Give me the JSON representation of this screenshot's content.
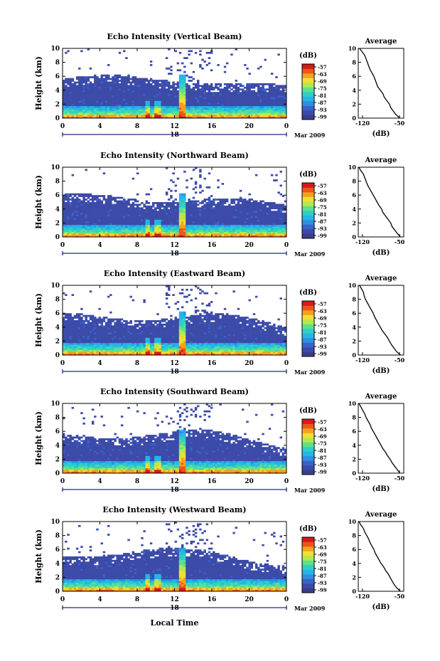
{
  "figure": {
    "x_axis_label": "Local Time",
    "date_label": "Mar 2009",
    "avg_title": "Average",
    "avg_xlabel": "(dB)",
    "colorbar_title": "(dB)",
    "colorbar_ticks": [
      "-57",
      "-63",
      "-69",
      "-75",
      "-81",
      "-87",
      "-93",
      "-99"
    ],
    "colormap": [
      "#3b3d8c",
      "#3c4aa8",
      "#3a62c8",
      "#2f8fe0",
      "#23b6e6",
      "#2ed0c6",
      "#5ee08e",
      "#b4e84c",
      "#f0e030",
      "#f7a020",
      "#ee5518",
      "#d8181a"
    ]
  },
  "chart_data": [
    {
      "type": "heatmap",
      "title": "Echo Intensity (Vertical Beam)",
      "ylabel": "Height (km)",
      "xlim": [
        0,
        24
      ],
      "ylim": [
        0,
        10
      ],
      "x_ticks": [
        "0",
        "4",
        "8",
        "12",
        "16",
        "20",
        "0"
      ],
      "y_ticks": [
        "0",
        "2",
        "4",
        "6",
        "8",
        "10"
      ],
      "day_marker": "18",
      "colorbar_range_db": [
        -99,
        -57
      ],
      "average_profile": {
        "xlim": [
          -120,
          -50
        ],
        "x_ticks": [
          "-120",
          "-50"
        ],
        "y_ticks": [
          "0",
          "2",
          "4",
          "6",
          "8",
          "10"
        ],
        "db": [
          -56,
          -62,
          -66,
          -70,
          -72,
          -76,
          -80,
          -82,
          -86,
          -90,
          -92,
          -94,
          -96,
          -99,
          -102,
          -104,
          -106,
          -108,
          -110,
          -114,
          -118
        ],
        "height_km": [
          0.0,
          0.5,
          1.0,
          1.5,
          2.0,
          2.5,
          3.0,
          3.5,
          4.0,
          4.5,
          5.0,
          5.5,
          6.0,
          6.5,
          7.0,
          7.5,
          8.0,
          8.5,
          9.0,
          9.5,
          10.0
        ]
      }
    },
    {
      "type": "heatmap",
      "title": "Echo Intensity (Northward Beam)",
      "ylabel": "Height (km)",
      "xlim": [
        0,
        24
      ],
      "ylim": [
        0,
        10
      ],
      "x_ticks": [
        "0",
        "4",
        "8",
        "12",
        "16",
        "20",
        "0"
      ],
      "y_ticks": [
        "0",
        "2",
        "4",
        "6",
        "8",
        "10"
      ],
      "day_marker": "18",
      "colorbar_range_db": [
        -99,
        -57
      ],
      "average_profile": {
        "xlim": [
          -120,
          -50
        ],
        "x_ticks": [
          "-120",
          "-50"
        ],
        "y_ticks": [
          "0",
          "2",
          "4",
          "6",
          "8",
          "10"
        ],
        "db": [
          -55,
          -60,
          -64,
          -68,
          -70,
          -74,
          -78,
          -82,
          -84,
          -88,
          -91,
          -94,
          -97,
          -100,
          -103,
          -106,
          -108,
          -110,
          -112,
          -116,
          -119
        ],
        "height_km": [
          0.0,
          0.5,
          1.0,
          1.5,
          2.0,
          2.5,
          3.0,
          3.5,
          4.0,
          4.5,
          5.0,
          5.5,
          6.0,
          6.5,
          7.0,
          7.5,
          8.0,
          8.5,
          9.0,
          9.5,
          10.0
        ]
      }
    },
    {
      "type": "heatmap",
      "title": "Echo Intensity (Eastward Beam)",
      "ylabel": "Height (km)",
      "xlim": [
        0,
        24
      ],
      "ylim": [
        0,
        10
      ],
      "x_ticks": [
        "0",
        "4",
        "8",
        "12",
        "16",
        "20",
        "0"
      ],
      "y_ticks": [
        "0",
        "2",
        "4",
        "6",
        "8",
        "10"
      ],
      "day_marker": "18",
      "colorbar_range_db": [
        -99,
        -57
      ],
      "average_profile": {
        "xlim": [
          -120,
          -50
        ],
        "x_ticks": [
          "-120",
          "-50"
        ],
        "y_ticks": [
          "0",
          "2",
          "4",
          "6",
          "8",
          "10"
        ],
        "db": [
          -55,
          -61,
          -65,
          -69,
          -72,
          -75,
          -79,
          -83,
          -86,
          -89,
          -92,
          -95,
          -97,
          -100,
          -103,
          -106,
          -109,
          -111,
          -112,
          -115,
          -118
        ],
        "height_km": [
          0.0,
          0.5,
          1.0,
          1.5,
          2.0,
          2.5,
          3.0,
          3.5,
          4.0,
          4.5,
          5.0,
          5.5,
          6.0,
          6.5,
          7.0,
          7.5,
          8.0,
          8.5,
          9.0,
          9.5,
          10.0
        ]
      }
    },
    {
      "type": "heatmap",
      "title": "Echo Intensity (Southward Beam)",
      "ylabel": "Height (km)",
      "xlim": [
        0,
        24
      ],
      "ylim": [
        0,
        10
      ],
      "x_ticks": [
        "0",
        "4",
        "8",
        "12",
        "16",
        "20",
        "0"
      ],
      "y_ticks": [
        "0",
        "2",
        "4",
        "6",
        "8",
        "10"
      ],
      "day_marker": "18",
      "colorbar_range_db": [
        -99,
        -57
      ],
      "average_profile": {
        "xlim": [
          -120,
          -50
        ],
        "x_ticks": [
          "-120",
          "-50"
        ],
        "y_ticks": [
          "0",
          "2",
          "4",
          "6",
          "8",
          "10"
        ],
        "db": [
          -56,
          -60,
          -64,
          -68,
          -71,
          -75,
          -78,
          -82,
          -85,
          -88,
          -91,
          -94,
          -97,
          -100,
          -102,
          -105,
          -108,
          -110,
          -113,
          -116,
          -119
        ],
        "height_km": [
          0.0,
          0.5,
          1.0,
          1.5,
          2.0,
          2.5,
          3.0,
          3.5,
          4.0,
          4.5,
          5.0,
          5.5,
          6.0,
          6.5,
          7.0,
          7.5,
          8.0,
          8.5,
          9.0,
          9.5,
          10.0
        ]
      }
    },
    {
      "type": "heatmap",
      "title": "Echo Intensity (Westward Beam)",
      "ylabel": "Height (km)",
      "xlim": [
        0,
        24
      ],
      "ylim": [
        0,
        10
      ],
      "x_ticks": [
        "0",
        "4",
        "8",
        "12",
        "16",
        "20",
        "0"
      ],
      "y_ticks": [
        "0",
        "2",
        "4",
        "6",
        "8",
        "10"
      ],
      "day_marker": "18",
      "colorbar_range_db": [
        -99,
        -57
      ],
      "average_profile": {
        "xlim": [
          -120,
          -50
        ],
        "x_ticks": [
          "-120",
          "-50"
        ],
        "y_ticks": [
          "0",
          "2",
          "4",
          "6",
          "8",
          "10"
        ],
        "db": [
          -55,
          -61,
          -65,
          -68,
          -71,
          -74,
          -78,
          -81,
          -85,
          -88,
          -91,
          -94,
          -96,
          -99,
          -102,
          -104,
          -107,
          -110,
          -112,
          -116,
          -119
        ],
        "height_km": [
          0.0,
          0.5,
          1.0,
          1.5,
          2.0,
          2.5,
          3.0,
          3.5,
          4.0,
          4.5,
          5.0,
          5.5,
          6.0,
          6.5,
          7.0,
          7.5,
          8.0,
          8.5,
          9.0,
          9.5,
          10.0
        ]
      }
    }
  ]
}
